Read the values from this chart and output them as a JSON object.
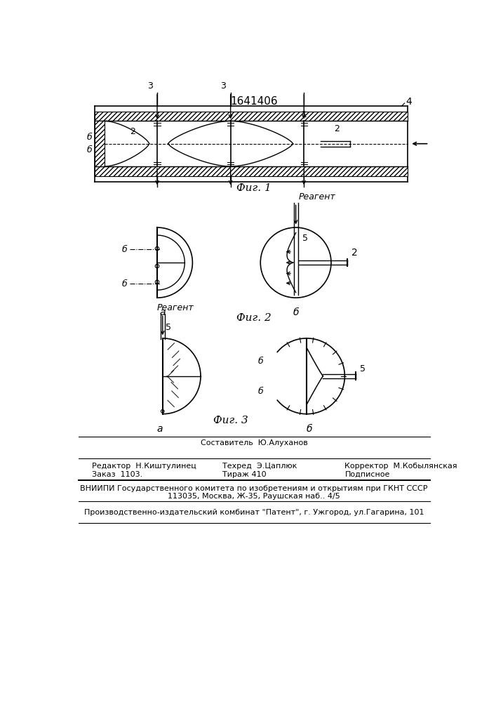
{
  "patent_number": "1641406",
  "fig1_label": "Фиг. 1",
  "fig2_label": "Фиг. 2",
  "fig3_label": "Фиг. 3",
  "label_reagent": "Реагент",
  "label_a": "а",
  "label_b": "б",
  "editor_line": "Редактор  Н.Киштулинец",
  "composer_label": "Составитель  Ю.Алуханов",
  "techred_line": "Техред  Э.Цаплюк",
  "corrector_line": "Корректор  М.Кобылянская",
  "order_line": "Заказ  1103.",
  "tirazh_line": "Тираж 410",
  "podpisnoe_line": "Подписное",
  "vniipи_line": "ВНИИПИ Государственного комитета по изобретениям и открытиям при ГКНТ СССР",
  "address_line": "113035, Москва, Ж-35, Раушская наб.. 4/5",
  "factory_line": "Производственно-издательский комбинат \"Патент\", г. Ужгород, ул.Гагарина, 101",
  "bg_color": "#ffffff"
}
